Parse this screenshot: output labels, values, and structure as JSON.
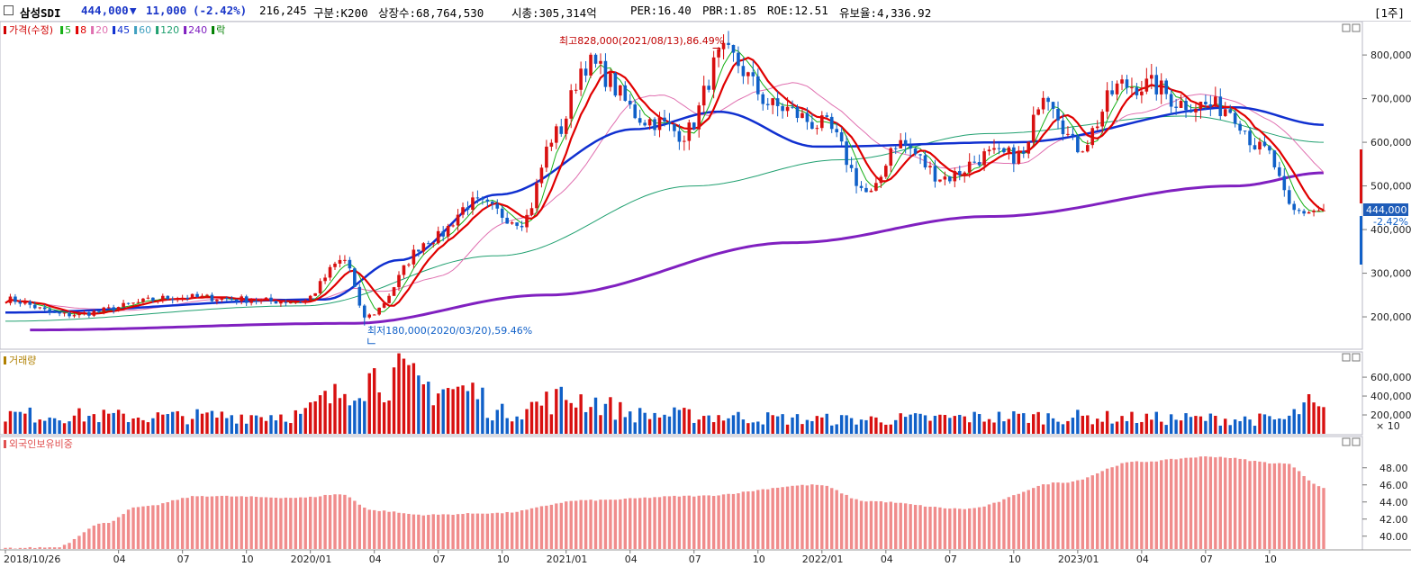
{
  "header": {
    "name": "삼성SDI",
    "price": "444,000",
    "change_arrow": "▼",
    "change": "11,000",
    "change_pct": "(-2.42%)",
    "volume": "216,245",
    "segment": "구분:K200",
    "listed_shares": "상장수:68,764,530",
    "market_cap": "시총:305,314억",
    "per": "PER:16.40",
    "pbr": "PBR:1.85",
    "roe": "ROE:12.51",
    "reserve": "유보율:4,336.92",
    "period": "[1주]"
  },
  "legend": {
    "price": {
      "label": "가격(수정)",
      "color": "#d00000"
    },
    "ma": [
      {
        "label": "5",
        "color": "#16b016"
      },
      {
        "label": "8",
        "color": "#e00000"
      },
      {
        "label": "20",
        "color": "#e070b0"
      },
      {
        "label": "45",
        "color": "#1030d0"
      },
      {
        "label": "60",
        "color": "#40a0c0"
      },
      {
        "label": "120",
        "color": "#20a070"
      },
      {
        "label": "240",
        "color": "#8020c0"
      },
      {
        "label": "락",
        "color": "#008000"
      }
    ],
    "volume": {
      "label": "거래량",
      "color": "#b08000"
    },
    "foreign": {
      "label": "외국인보유비중",
      "color": "#e05050"
    }
  },
  "annotations": {
    "high": "최고828,000(2021/08/13),86.49%",
    "low": "최저180,000(2020/03/20),59.46%",
    "current_price": "444,000",
    "current_pct": "-2.42%",
    "volume_unit": "× 10"
  },
  "colors": {
    "up": "#d81010",
    "down": "#1060c8",
    "foreign_bar": "#f08c8c",
    "axis_badge": "#1e5cb8"
  },
  "chart_data": {
    "type": "candlestick",
    "interval": "weekly",
    "x_range": [
      "2018/10/26",
      "2023/12/08"
    ],
    "x_tick_labels": [
      "2018/10/26",
      "04",
      "07",
      "10",
      "2020/01",
      "04",
      "07",
      "10",
      "2021/01",
      "04",
      "07",
      "10",
      "2022/01",
      "04",
      "07",
      "10",
      "2023/01",
      "04",
      "07",
      "10"
    ],
    "price_axis": {
      "ylim": [
        130000,
        860000
      ],
      "tick_labels": [
        "200,000",
        "300,000",
        "400,000",
        "500,000",
        "600,000",
        "700,000",
        "800,000"
      ],
      "ticks": [
        200000,
        300000,
        400000,
        500000,
        600000,
        700000,
        800000
      ]
    },
    "price_keypoints": [
      {
        "date": "2018/10/26",
        "close": 240000
      },
      {
        "date": "2019/01/18",
        "close": 205000
      },
      {
        "date": "2019/07/05",
        "close": 245000
      },
      {
        "date": "2019/12/20",
        "close": 235000
      },
      {
        "date": "2020/02/21",
        "close": 330000
      },
      {
        "date": "2020/03/20",
        "close": 200000,
        "low": 180000
      },
      {
        "date": "2020/06/26",
        "close": 380000
      },
      {
        "date": "2020/08/21",
        "close": 460000
      },
      {
        "date": "2020/10/30",
        "close": 420000
      },
      {
        "date": "2020/12/18",
        "close": 620000
      },
      {
        "date": "2021/01/29",
        "close": 780000
      },
      {
        "date": "2021/04/30",
        "close": 650000
      },
      {
        "date": "2021/06/18",
        "close": 620000
      },
      {
        "date": "2021/08/13",
        "close": 800000,
        "high": 828000
      },
      {
        "date": "2021/10/29",
        "close": 680000
      },
      {
        "date": "2021/12/31",
        "close": 640000
      },
      {
        "date": "2022/03/11",
        "close": 480000
      },
      {
        "date": "2022/04/15",
        "close": 600000
      },
      {
        "date": "2022/06/24",
        "close": 520000
      },
      {
        "date": "2022/08/26",
        "close": 570000
      },
      {
        "date": "2022/10/14",
        "close": 570000
      },
      {
        "date": "2022/11/11",
        "close": 720000
      },
      {
        "date": "2022/12/30",
        "close": 590000
      },
      {
        "date": "2023/03/03",
        "close": 730000
      },
      {
        "date": "2023/04/14",
        "close": 730000
      },
      {
        "date": "2023/05/26",
        "close": 690000
      },
      {
        "date": "2023/07/28",
        "close": 680000
      },
      {
        "date": "2023/09/22",
        "close": 580000
      },
      {
        "date": "2023/11/03",
        "close": 440000
      },
      {
        "date": "2023/12/08",
        "close": 444000
      }
    ],
    "ma_keypoints": {
      "ma45": [
        [
          0,
          210000
        ],
        [
          65,
          240000
        ],
        [
          80,
          330000
        ],
        [
          100,
          480000
        ],
        [
          128,
          630000
        ],
        [
          145,
          670000
        ],
        [
          165,
          590000
        ],
        [
          205,
          600000
        ],
        [
          250,
          680000
        ],
        [
          268,
          640000
        ]
      ],
      "ma240": [
        [
          5,
          170000
        ],
        [
          70,
          185000
        ],
        [
          110,
          250000
        ],
        [
          160,
          370000
        ],
        [
          200,
          430000
        ],
        [
          250,
          500000
        ],
        [
          268,
          530000
        ]
      ],
      "ma120": [
        [
          0,
          190000
        ],
        [
          60,
          225000
        ],
        [
          100,
          340000
        ],
        [
          140,
          500000
        ],
        [
          170,
          560000
        ],
        [
          200,
          620000
        ],
        [
          240,
          660000
        ],
        [
          268,
          600000
        ]
      ]
    },
    "volume_axis": {
      "unit": "× 10",
      "ylim": [
        0,
        820000
      ],
      "tick_labels": [
        "200,000",
        "400,000",
        "600,000"
      ],
      "ticks": [
        200000,
        400000,
        600000
      ]
    },
    "volume_keypoints": [
      [
        0,
        200000
      ],
      [
        30,
        180000
      ],
      [
        60,
        200000
      ],
      [
        65,
        350000
      ],
      [
        73,
        600000
      ],
      [
        80,
        600000
      ],
      [
        85,
        500000
      ],
      [
        95,
        450000
      ],
      [
        100,
        220000
      ],
      [
        115,
        380000
      ],
      [
        130,
        200000
      ],
      [
        170,
        150000
      ],
      [
        210,
        180000
      ],
      [
        240,
        160000
      ],
      [
        260,
        150000
      ],
      [
        265,
        300000
      ],
      [
        268,
        220000
      ]
    ],
    "foreign_axis": {
      "ylim": [
        38.5,
        50.5
      ],
      "tick_labels": [
        "40.00",
        "42.00",
        "44.00",
        "46.00",
        "48.00"
      ],
      "ticks": [
        40,
        42,
        44,
        46,
        48
      ]
    },
    "foreign_keypoints": [
      [
        0,
        38.6
      ],
      [
        10,
        38.7
      ],
      [
        20,
        41.5
      ],
      [
        27,
        43.4
      ],
      [
        40,
        44.7
      ],
      [
        60,
        44.5
      ],
      [
        68,
        44.9
      ],
      [
        75,
        43.0
      ],
      [
        85,
        42.5
      ],
      [
        100,
        42.7
      ],
      [
        118,
        44.2
      ],
      [
        140,
        44.7
      ],
      [
        165,
        46.0
      ],
      [
        175,
        44.1
      ],
      [
        195,
        43.2
      ],
      [
        215,
        46.3
      ],
      [
        230,
        48.7
      ],
      [
        245,
        49.3
      ],
      [
        260,
        48.5
      ],
      [
        268,
        45.7
      ]
    ]
  }
}
